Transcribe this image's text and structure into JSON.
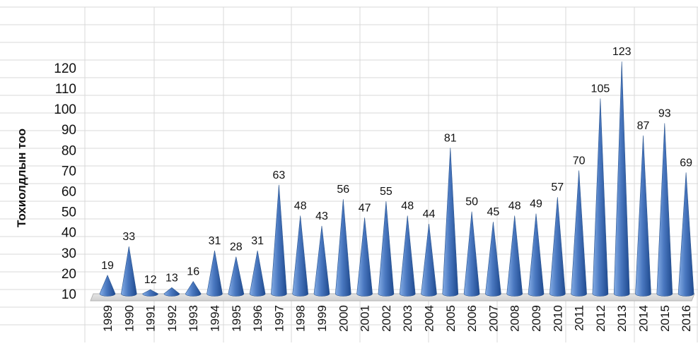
{
  "chart_data": {
    "type": "bar",
    "mark_style": "3d-cone",
    "title": "",
    "xlabel": "",
    "ylabel": "Тохиолдлын тоо",
    "ylim": [
      10,
      120
    ],
    "yticks": [
      10,
      20,
      30,
      40,
      50,
      60,
      70,
      80,
      90,
      100,
      110,
      120
    ],
    "grid": true,
    "legend": "none",
    "bar_color": "#4a78c0",
    "categories": [
      "1989",
      "1990",
      "1991",
      "1992",
      "1993",
      "1994",
      "1995",
      "1996",
      "1997",
      "1998",
      "1999",
      "2000",
      "2001",
      "2002",
      "2003",
      "2004",
      "2005",
      "2006",
      "2007",
      "2008",
      "2009",
      "2010",
      "2011",
      "2012",
      "2013",
      "2014",
      "2015",
      "2016"
    ],
    "values": [
      19,
      33,
      12,
      13,
      16,
      31,
      28,
      31,
      63,
      48,
      43,
      56,
      47,
      55,
      48,
      44,
      81,
      50,
      45,
      48,
      49,
      57,
      70,
      105,
      123,
      87,
      93,
      69
    ]
  }
}
